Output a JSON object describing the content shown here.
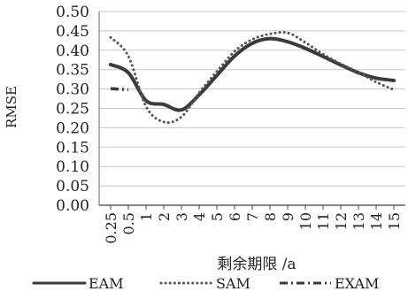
{
  "chart_data": {
    "type": "line",
    "title": "",
    "xlabel": "剩余期限 /a",
    "ylabel": "RMSE",
    "ylim": [
      0,
      0.5
    ],
    "yticks": [
      "0.00",
      "0.05",
      "0.10",
      "0.15",
      "0.20",
      "0.25",
      "0.30",
      "0.35",
      "0.40",
      "0.45",
      "0.50"
    ],
    "grid": true,
    "legend_position": "bottom",
    "categories": [
      "0.25",
      "0.5",
      "1",
      "2",
      "3",
      "4",
      "5",
      "6",
      "7",
      "8",
      "9",
      "10",
      "11",
      "12",
      "13",
      "14",
      "15"
    ],
    "series": [
      {
        "name": "EAM",
        "style": "solid",
        "values": [
          0.363,
          0.342,
          0.27,
          0.26,
          0.246,
          0.285,
          0.335,
          0.385,
          0.418,
          0.43,
          0.422,
          0.405,
          0.384,
          0.362,
          0.342,
          0.328,
          0.322
        ]
      },
      {
        "name": "SAM",
        "style": "dotted",
        "values": [
          0.433,
          0.385,
          0.255,
          0.215,
          0.228,
          0.29,
          0.345,
          0.397,
          0.428,
          0.442,
          0.445,
          0.42,
          0.39,
          0.365,
          0.343,
          0.318,
          0.298
        ]
      },
      {
        "name": "EXAM",
        "style": "dashdot",
        "values": [
          0.301,
          0.298,
          null,
          null,
          null,
          null,
          null,
          null,
          null,
          null,
          null,
          null,
          null,
          null,
          null,
          null,
          null
        ]
      }
    ]
  }
}
